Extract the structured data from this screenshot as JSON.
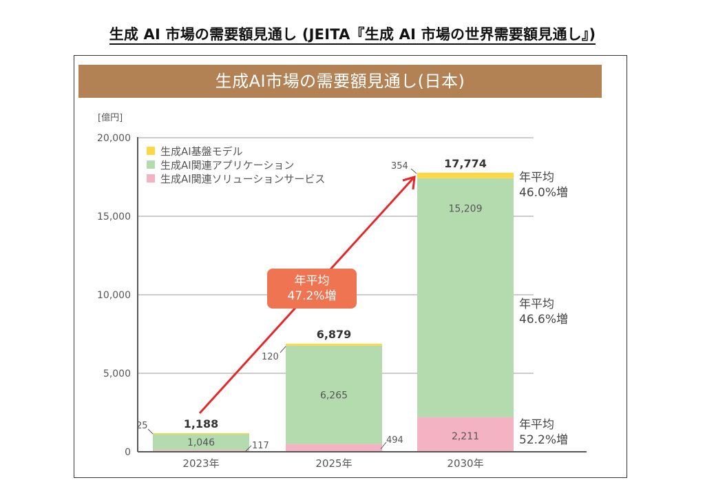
{
  "document": {
    "title": "生成 AI 市場の需要額見通し (JEITA『生成 AI 市場の世界需要額見通し』)"
  },
  "chart_data": {
    "type": "bar",
    "stacked": true,
    "title": "生成AI市場の需要額見通し(日本)",
    "unit_label": "[億円]",
    "xlabel": "",
    "ylabel": "[億円]",
    "ylim": [
      0,
      20000
    ],
    "yticks": [
      0,
      5000,
      10000,
      15000,
      20000
    ],
    "ytick_labels": [
      "0",
      "5,000",
      "10,000",
      "15,000",
      "20,000"
    ],
    "grid": true,
    "legend_position": "top-left",
    "categories": [
      "2023年",
      "2025年",
      "2030年"
    ],
    "series": [
      {
        "name": "生成AI関連ソリューションサービス",
        "color": "#f4b3c2",
        "values": [
          117,
          494,
          2211
        ],
        "labels": [
          "117",
          "494",
          "2,211"
        ]
      },
      {
        "name": "生成AI関連アプリケーション",
        "color": "#b3dbae",
        "values": [
          1046,
          6265,
          15209
        ],
        "labels": [
          "1,046",
          "6,265",
          "15,209"
        ]
      },
      {
        "name": "生成AI基盤モデル",
        "color": "#fdd745",
        "values": [
          25,
          120,
          354
        ],
        "labels": [
          "25",
          "120",
          "354"
        ]
      }
    ],
    "totals": [
      1188,
      6879,
      17774
    ],
    "total_labels": [
      "1,188",
      "6,879",
      "17,774"
    ],
    "legend": [
      "生成AI基盤モデル",
      "生成AI関連アプリケーション",
      "生成AI関連ソリューションサービス"
    ],
    "annotations": {
      "overall_growth": {
        "line1": "年平均",
        "line2": "47.2%増",
        "color": "#ee7452"
      },
      "foundation_growth": {
        "line1": "年平均",
        "line2": "46.0%増"
      },
      "application_growth": {
        "line1": "年平均",
        "line2": "46.6%増"
      },
      "solution_growth": {
        "line1": "年平均",
        "line2": "52.2%増"
      }
    },
    "arrow_color": "#e8262a"
  }
}
